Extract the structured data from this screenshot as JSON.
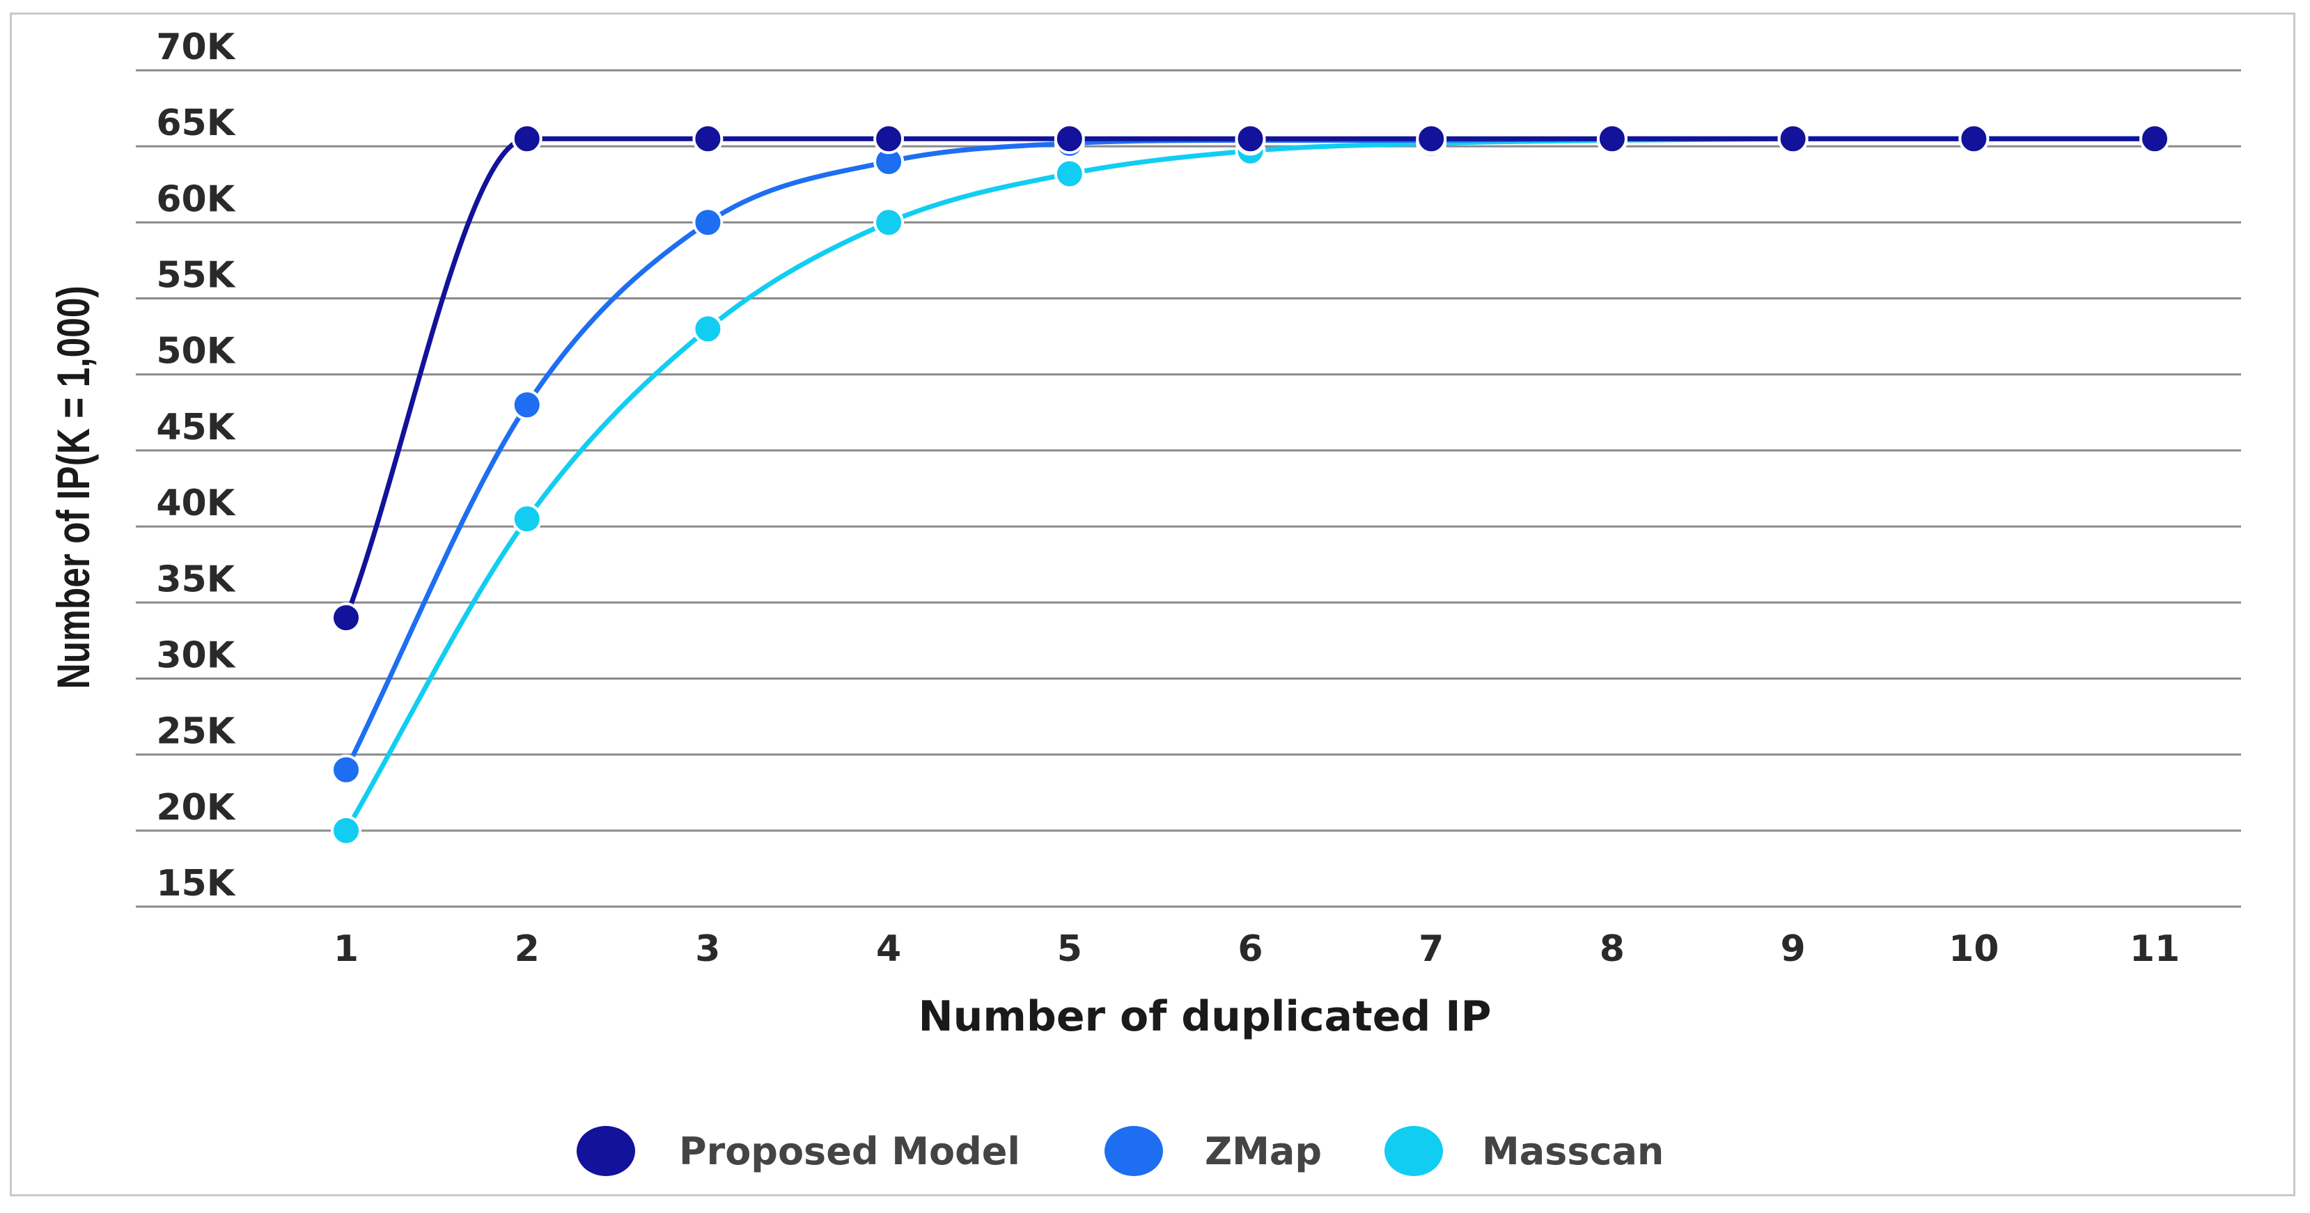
{
  "chart_data": {
    "type": "line",
    "title": "",
    "xlabel": "Number of duplicated IP",
    "ylabel": "Number of IP(K = 1,000)",
    "x": [
      1,
      2,
      3,
      4,
      5,
      6,
      7,
      8,
      9,
      10,
      11
    ],
    "x_tick_labels": [
      "1",
      "2",
      "3",
      "4",
      "5",
      "6",
      "7",
      "8",
      "9",
      "10",
      "11"
    ],
    "y_tick_values": [
      15,
      20,
      25,
      30,
      35,
      40,
      45,
      50,
      55,
      60,
      65,
      70
    ],
    "y_tick_labels": [
      "15K",
      "20K",
      "25K",
      "30K",
      "35K",
      "40K",
      "45K",
      "50K",
      "55K",
      "60K",
      "65K",
      "70K"
    ],
    "ylim": [
      15,
      70
    ],
    "grid": "horizontal",
    "legend_position": "bottom-center",
    "series": [
      {
        "name": "Proposed Model",
        "color": "#12129a",
        "values": [
          34,
          65.5,
          65.5,
          65.5,
          65.5,
          65.5,
          65.5,
          65.5,
          65.5,
          65.5,
          65.5
        ]
      },
      {
        "name": "ZMap",
        "color": "#1e6ef2",
        "values": [
          24,
          48,
          60,
          64,
          65.2,
          65.4,
          65.4,
          65.5,
          65.5,
          65.5,
          65.5
        ]
      },
      {
        "name": "Masscan",
        "color": "#12cdf2",
        "values": [
          20,
          40.5,
          53,
          60,
          63.2,
          64.7,
          65.2,
          65.4,
          65.5,
          65.5,
          65.5
        ]
      }
    ]
  }
}
